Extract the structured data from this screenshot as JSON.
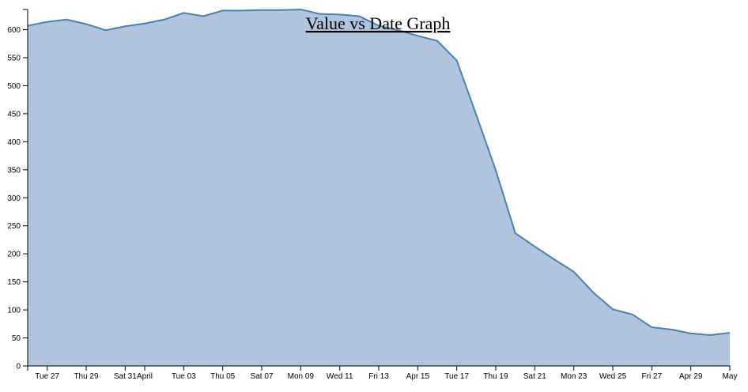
{
  "chart_data": {
    "type": "area",
    "title": "Value vs Date Graph",
    "x": [
      0,
      1,
      2,
      3,
      4,
      5,
      6,
      7,
      8,
      9,
      10,
      11,
      12,
      13,
      14,
      15,
      16,
      17,
      18,
      19,
      20,
      21,
      22,
      23,
      24,
      25,
      26,
      27,
      28,
      29,
      30,
      31,
      32,
      33,
      34,
      35,
      36
    ],
    "series": [
      {
        "color": "#4682b4",
        "fill": "#b0c4de",
        "values": [
          607,
          614,
          618,
          610,
          599,
          606,
          611,
          618,
          630,
          624,
          634,
          634,
          635,
          635,
          636,
          628,
          627,
          624,
          607,
          599,
          589,
          580,
          545,
          448,
          349,
          237,
          213,
          190,
          168,
          131,
          101,
          92,
          69,
          65,
          58,
          55,
          59
        ]
      }
    ],
    "xlim": [
      0,
      36
    ],
    "xticks": [
      {
        "value": 1,
        "label": "Tue 27"
      },
      {
        "value": 3,
        "label": "Thu 29"
      },
      {
        "value": 5,
        "label": "Sat 31"
      },
      {
        "value": 6,
        "label": "April"
      },
      {
        "value": 8,
        "label": "Tue 03"
      },
      {
        "value": 10,
        "label": "Thu 05"
      },
      {
        "value": 12,
        "label": "Sat 07"
      },
      {
        "value": 14,
        "label": "Mon 09"
      },
      {
        "value": 16,
        "label": "Wed 11"
      },
      {
        "value": 18,
        "label": "Fri 13"
      },
      {
        "value": 20,
        "label": "Apr 15"
      },
      {
        "value": 22,
        "label": "Tue 17"
      },
      {
        "value": 24,
        "label": "Thu 19"
      },
      {
        "value": 26,
        "label": "Sat 21"
      },
      {
        "value": 28,
        "label": "Mon 23"
      },
      {
        "value": 30,
        "label": "Wed 25"
      },
      {
        "value": 32,
        "label": "Fri 27"
      },
      {
        "value": 34,
        "label": "Apr 29"
      },
      {
        "value": 36,
        "label": "May"
      }
    ],
    "ylim": [
      0,
      636
    ],
    "yticks": [
      0,
      50,
      100,
      150,
      200,
      250,
      300,
      350,
      400,
      450,
      500,
      550,
      600
    ]
  }
}
